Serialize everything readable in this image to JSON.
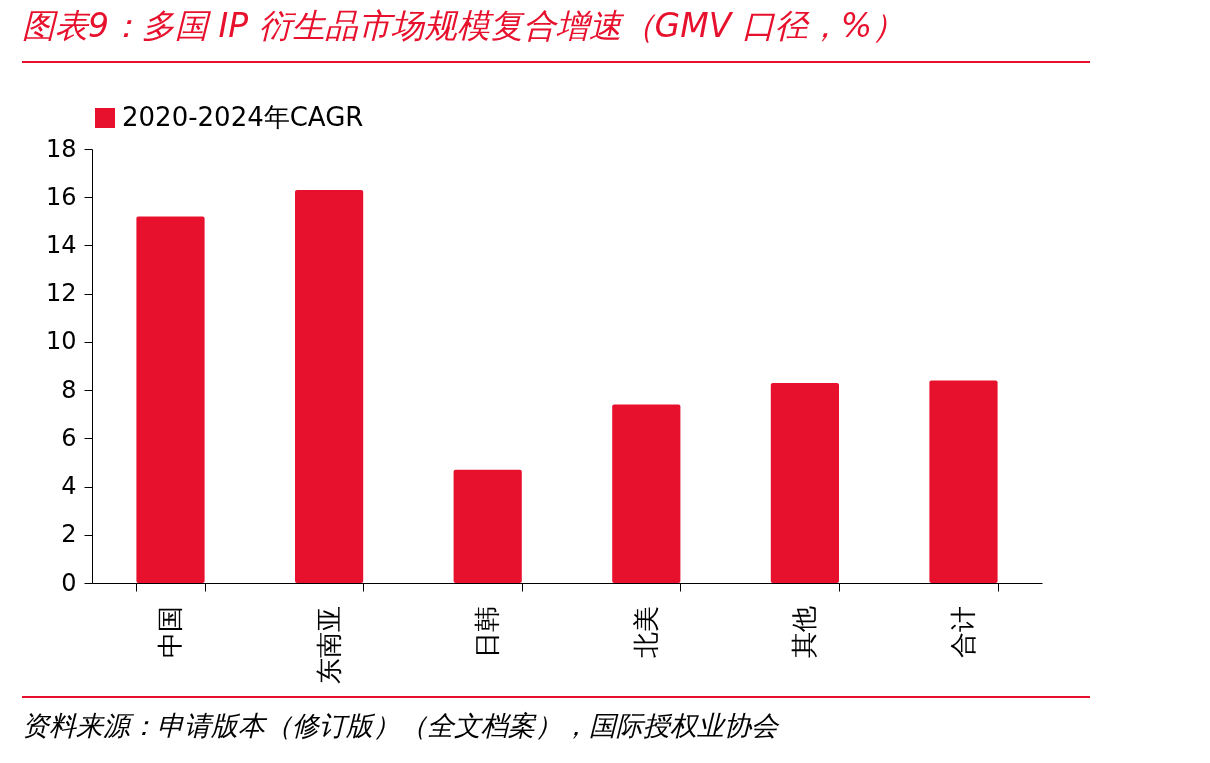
{
  "chart_data": {
    "type": "bar",
    "title": "图表9：多国 IP 衍生品市场规模复合增速（GMV 口径，%）",
    "categories": [
      "中国",
      "东南亚",
      "日韩",
      "北美",
      "其他",
      "合计"
    ],
    "series": [
      {
        "name": "2020-2024年CAGR",
        "color": "#e8112d",
        "values": [
          15.2,
          16.3,
          4.7,
          7.4,
          8.3,
          8.4
        ]
      }
    ],
    "ylim": [
      0,
      18
    ],
    "yticks": [
      0,
      2,
      4,
      6,
      8,
      10,
      12,
      14,
      16,
      18
    ],
    "grid": false,
    "legend": "top",
    "annotations": [
      "资料来源：申请版本（修订版）（全文档案），国际授权业协会"
    ]
  }
}
